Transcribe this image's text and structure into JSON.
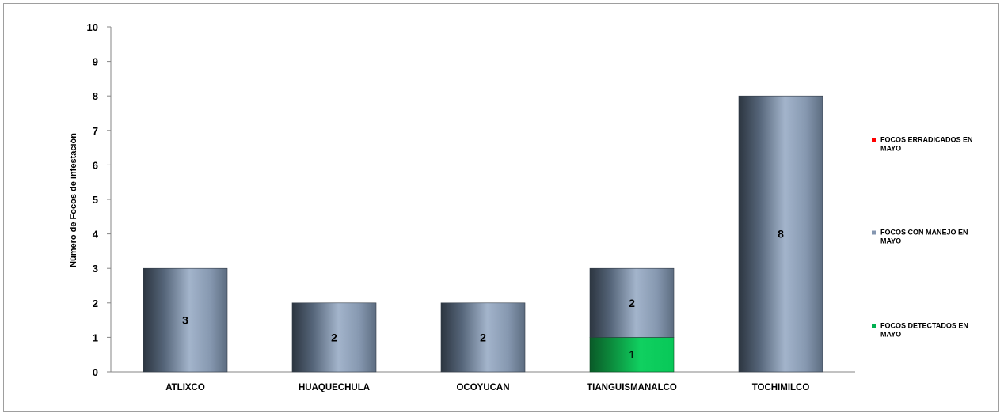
{
  "chart_data": {
    "type": "bar",
    "stacked": true,
    "categories": [
      "ATLIXCO",
      "HUAQUECHULA",
      "OCOYUCAN",
      "TIANGUISMANALCO",
      "TOCHIMILCO"
    ],
    "series": [
      {
        "name": "FOCOS DETECTADOS EN MAYO",
        "color": "#00b050",
        "values": [
          0,
          0,
          0,
          1,
          0
        ],
        "labels": [
          "",
          "",
          "",
          "1",
          ""
        ]
      },
      {
        "name": "FOCOS CON MANEJO EN MAYO",
        "color": "#8496b0",
        "values": [
          3,
          2,
          2,
          2,
          8
        ],
        "labels": [
          "3",
          "2",
          "2",
          "2",
          "8"
        ]
      },
      {
        "name": "FOCOS ERRADICADOS EN MAYO",
        "color": "#ff0000",
        "values": [
          0,
          0,
          0,
          0,
          0
        ],
        "labels": [
          "",
          "",
          "",
          "",
          ""
        ]
      }
    ],
    "legend_order": [
      "FOCOS ERRADICADOS EN MAYO",
      "FOCOS CON MANEJO EN MAYO",
      "FOCOS DETECTADOS EN MAYO"
    ],
    "legend_lines": [
      [
        "FOCOS ERRADICADOS EN",
        "MAYO"
      ],
      [
        "FOCOS CON MANEJO EN",
        "MAYO"
      ],
      [
        "FOCOS DETECTADOS EN",
        "MAYO"
      ]
    ],
    "ylabel": "Número de Focos de infestación",
    "xlabel": "",
    "title": "",
    "ylim": [
      0,
      10
    ],
    "yticks": [
      0,
      1,
      2,
      3,
      4,
      5,
      6,
      7,
      8,
      9,
      10
    ],
    "grid": false,
    "legend_position": "right"
  }
}
